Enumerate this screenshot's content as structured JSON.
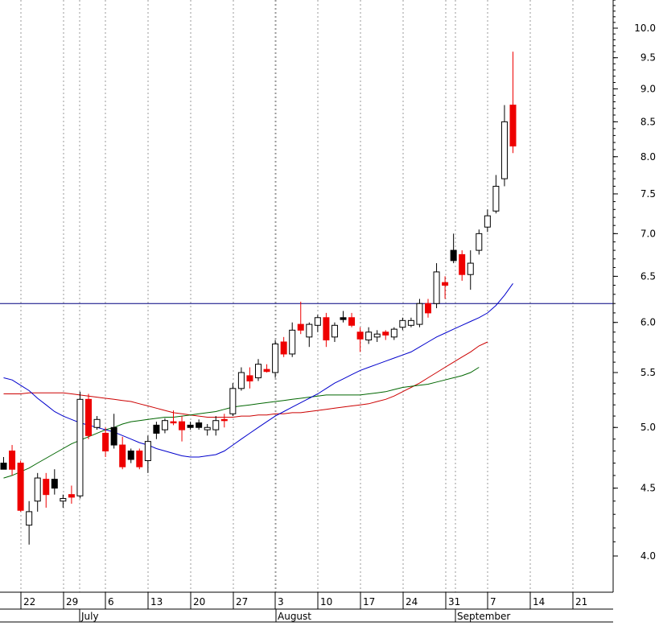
{
  "chart_data": {
    "type": "candlestick",
    "y_scale": "log",
    "ylim": [
      3.8,
      10.7
    ],
    "grid": "vertical dotted",
    "yticks": [
      "4.0",
      "4.5",
      "5.0",
      "5.5",
      "6.0",
      "6.5",
      "7.0",
      "7.5",
      "8.0",
      "8.5",
      "9.0",
      "9.5",
      "10.0"
    ],
    "ytick_values": [
      4.0,
      4.5,
      5.0,
      5.5,
      6.0,
      6.5,
      7.0,
      7.5,
      8.0,
      8.5,
      9.0,
      9.5,
      10.0
    ],
    "x_day_labels": [
      "22",
      "29",
      "6",
      "13",
      "20",
      "27",
      "3",
      "10",
      "17",
      "24",
      "31",
      "7",
      "14",
      "21"
    ],
    "x_month_labels": [
      "July",
      "August",
      "September"
    ],
    "horizontal_line": 6.2,
    "colors": {
      "up": "#ffffff",
      "down_red": "#ee0000",
      "down_black": "#000000",
      "ma_blue": "#0000cc",
      "ma_red": "#cc0000",
      "ma_green": "#006600",
      "hline": "#000080"
    },
    "candles": [
      {
        "o": 4.7,
        "h": 4.75,
        "l": 4.65,
        "c": 4.65,
        "col": "black"
      },
      {
        "o": 4.8,
        "h": 4.85,
        "l": 4.6,
        "c": 4.65,
        "col": "red"
      },
      {
        "o": 4.7,
        "h": 4.72,
        "l": 4.32,
        "c": 4.33,
        "col": "red"
      },
      {
        "o": 4.22,
        "h": 4.4,
        "l": 4.08,
        "c": 4.32,
        "col": "white"
      },
      {
        "o": 4.4,
        "h": 4.62,
        "l": 4.32,
        "c": 4.58,
        "col": "white"
      },
      {
        "o": 4.57,
        "h": 4.62,
        "l": 4.35,
        "c": 4.45,
        "col": "red"
      },
      {
        "o": 4.57,
        "h": 4.65,
        "l": 4.45,
        "c": 4.5,
        "col": "black"
      },
      {
        "o": 4.4,
        "h": 4.45,
        "l": 4.35,
        "c": 4.42,
        "col": "white"
      },
      {
        "o": 4.45,
        "h": 4.52,
        "l": 4.38,
        "c": 4.43,
        "col": "red"
      },
      {
        "o": 4.44,
        "h": 5.32,
        "l": 4.42,
        "c": 5.25,
        "col": "white"
      },
      {
        "o": 5.25,
        "h": 5.3,
        "l": 4.9,
        "c": 4.93,
        "col": "red"
      },
      {
        "o": 5.0,
        "h": 5.1,
        "l": 4.98,
        "c": 5.07,
        "col": "white"
      },
      {
        "o": 4.95,
        "h": 5.0,
        "l": 4.75,
        "c": 4.8,
        "col": "red"
      },
      {
        "o": 5.0,
        "h": 5.12,
        "l": 4.82,
        "c": 4.85,
        "col": "black"
      },
      {
        "o": 4.85,
        "h": 4.92,
        "l": 4.65,
        "c": 4.67,
        "col": "red"
      },
      {
        "o": 4.8,
        "h": 4.82,
        "l": 4.7,
        "c": 4.73,
        "col": "black"
      },
      {
        "o": 4.8,
        "h": 4.82,
        "l": 4.65,
        "c": 4.67,
        "col": "red"
      },
      {
        "o": 4.72,
        "h": 4.93,
        "l": 4.62,
        "c": 4.88,
        "col": "white"
      },
      {
        "o": 4.95,
        "h": 5.05,
        "l": 4.9,
        "c": 5.02,
        "col": "black"
      },
      {
        "o": 4.98,
        "h": 5.08,
        "l": 4.95,
        "c": 5.06,
        "col": "white"
      },
      {
        "o": 5.05,
        "h": 5.15,
        "l": 5.02,
        "c": 5.05,
        "col": "red"
      },
      {
        "o": 5.05,
        "h": 5.1,
        "l": 4.88,
        "c": 4.98,
        "col": "red"
      },
      {
        "o": 5.02,
        "h": 5.05,
        "l": 4.98,
        "c": 5.0,
        "col": "black"
      },
      {
        "o": 5.0,
        "h": 5.07,
        "l": 4.98,
        "c": 5.04,
        "col": "black"
      },
      {
        "o": 4.98,
        "h": 5.03,
        "l": 4.93,
        "c": 5.0,
        "col": "white"
      },
      {
        "o": 4.98,
        "h": 5.1,
        "l": 4.93,
        "c": 5.06,
        "col": "white"
      },
      {
        "o": 5.07,
        "h": 5.12,
        "l": 5.0,
        "c": 5.06,
        "col": "red"
      },
      {
        "o": 5.12,
        "h": 5.4,
        "l": 5.1,
        "c": 5.35,
        "col": "white"
      },
      {
        "o": 5.35,
        "h": 5.55,
        "l": 5.33,
        "c": 5.5,
        "col": "white"
      },
      {
        "o": 5.47,
        "h": 5.55,
        "l": 5.35,
        "c": 5.42,
        "col": "red"
      },
      {
        "o": 5.45,
        "h": 5.63,
        "l": 5.42,
        "c": 5.58,
        "col": "white"
      },
      {
        "o": 5.53,
        "h": 5.58,
        "l": 5.5,
        "c": 5.51,
        "col": "red"
      },
      {
        "o": 5.5,
        "h": 5.82,
        "l": 5.45,
        "c": 5.78,
        "col": "white"
      },
      {
        "o": 5.8,
        "h": 5.85,
        "l": 5.65,
        "c": 5.68,
        "col": "red"
      },
      {
        "o": 5.68,
        "h": 6.0,
        "l": 5.65,
        "c": 5.92,
        "col": "white"
      },
      {
        "o": 5.98,
        "h": 6.22,
        "l": 5.88,
        "c": 5.92,
        "col": "red"
      },
      {
        "o": 5.85,
        "h": 6.0,
        "l": 5.75,
        "c": 5.98,
        "col": "white"
      },
      {
        "o": 5.97,
        "h": 6.08,
        "l": 5.9,
        "c": 6.05,
        "col": "white"
      },
      {
        "o": 6.05,
        "h": 6.1,
        "l": 5.75,
        "c": 5.82,
        "col": "red"
      },
      {
        "o": 5.85,
        "h": 6.0,
        "l": 5.8,
        "c": 5.97,
        "col": "white"
      },
      {
        "o": 6.05,
        "h": 6.12,
        "l": 6.0,
        "c": 6.03,
        "col": "black"
      },
      {
        "o": 6.05,
        "h": 6.1,
        "l": 5.95,
        "c": 5.97,
        "col": "red"
      },
      {
        "o": 5.9,
        "h": 5.95,
        "l": 5.7,
        "c": 5.83,
        "col": "red"
      },
      {
        "o": 5.82,
        "h": 5.95,
        "l": 5.78,
        "c": 5.9,
        "col": "white"
      },
      {
        "o": 5.85,
        "h": 5.92,
        "l": 5.8,
        "c": 5.88,
        "col": "white"
      },
      {
        "o": 5.9,
        "h": 5.92,
        "l": 5.82,
        "c": 5.87,
        "col": "red"
      },
      {
        "o": 5.85,
        "h": 5.95,
        "l": 5.82,
        "c": 5.93,
        "col": "white"
      },
      {
        "o": 5.95,
        "h": 6.05,
        "l": 5.92,
        "c": 6.02,
        "col": "white"
      },
      {
        "o": 5.97,
        "h": 6.05,
        "l": 5.95,
        "c": 6.02,
        "col": "white"
      },
      {
        "o": 5.98,
        "h": 6.25,
        "l": 5.95,
        "c": 6.2,
        "col": "white"
      },
      {
        "o": 6.2,
        "h": 6.25,
        "l": 6.05,
        "c": 6.1,
        "col": "red"
      },
      {
        "o": 6.2,
        "h": 6.65,
        "l": 6.15,
        "c": 6.55,
        "col": "white"
      },
      {
        "o": 6.43,
        "h": 6.5,
        "l": 6.25,
        "c": 6.4,
        "col": "red"
      },
      {
        "o": 6.8,
        "h": 7.0,
        "l": 6.65,
        "c": 6.68,
        "col": "black"
      },
      {
        "o": 6.75,
        "h": 6.8,
        "l": 6.45,
        "c": 6.52,
        "col": "red"
      },
      {
        "o": 6.52,
        "h": 6.8,
        "l": 6.35,
        "c": 6.65,
        "col": "white"
      },
      {
        "o": 6.8,
        "h": 7.05,
        "l": 6.75,
        "c": 7.0,
        "col": "white"
      },
      {
        "o": 7.08,
        "h": 7.3,
        "l": 7.02,
        "c": 7.22,
        "col": "white"
      },
      {
        "o": 7.28,
        "h": 7.75,
        "l": 7.25,
        "c": 7.6,
        "col": "white"
      },
      {
        "o": 7.7,
        "h": 8.75,
        "l": 7.6,
        "c": 8.5,
        "col": "white"
      },
      {
        "o": 8.75,
        "h": 9.6,
        "l": 8.05,
        "c": 8.15,
        "col": "red"
      }
    ],
    "ma_blue": [
      5.45,
      5.43,
      5.38,
      5.33,
      5.26,
      5.2,
      5.14,
      5.1,
      5.07,
      5.04,
      5.02,
      5.0,
      4.98,
      4.96,
      4.93,
      4.9,
      4.87,
      4.85,
      4.82,
      4.8,
      4.78,
      4.76,
      4.75,
      4.75,
      4.76,
      4.77,
      4.8,
      4.85,
      4.9,
      4.95,
      5.0,
      5.05,
      5.1,
      5.14,
      5.18,
      5.22,
      5.26,
      5.3,
      5.35,
      5.4,
      5.44,
      5.48,
      5.52,
      5.55,
      5.58,
      5.61,
      5.64,
      5.67,
      5.7,
      5.75,
      5.8,
      5.85,
      5.89,
      5.93,
      5.97,
      6.01,
      6.05,
      6.1,
      6.18,
      6.29,
      6.42
    ],
    "ma_red": [
      5.3,
      5.3,
      5.3,
      5.31,
      5.31,
      5.31,
      5.31,
      5.31,
      5.3,
      5.29,
      5.28,
      5.27,
      5.26,
      5.25,
      5.24,
      5.23,
      5.21,
      5.19,
      5.17,
      5.15,
      5.13,
      5.12,
      5.11,
      5.1,
      5.09,
      5.09,
      5.09,
      5.09,
      5.1,
      5.1,
      5.11,
      5.11,
      5.12,
      5.12,
      5.13,
      5.13,
      5.14,
      5.15,
      5.16,
      5.17,
      5.18,
      5.19,
      5.2,
      5.21,
      5.23,
      5.25,
      5.28,
      5.32,
      5.36,
      5.4,
      5.45,
      5.5,
      5.55,
      5.6,
      5.65,
      5.7,
      5.76,
      5.8
    ],
    "ma_green": [
      4.58,
      4.6,
      4.63,
      4.66,
      4.7,
      4.74,
      4.78,
      4.82,
      4.86,
      4.89,
      4.92,
      4.95,
      4.98,
      5.0,
      5.03,
      5.05,
      5.06,
      5.07,
      5.08,
      5.09,
      5.09,
      5.1,
      5.11,
      5.12,
      5.13,
      5.14,
      5.16,
      5.18,
      5.19,
      5.2,
      5.21,
      5.22,
      5.23,
      5.24,
      5.25,
      5.26,
      5.27,
      5.28,
      5.29,
      5.29,
      5.29,
      5.29,
      5.29,
      5.3,
      5.31,
      5.32,
      5.34,
      5.36,
      5.37,
      5.38,
      5.39,
      5.41,
      5.43,
      5.45,
      5.47,
      5.5,
      5.55
    ]
  }
}
